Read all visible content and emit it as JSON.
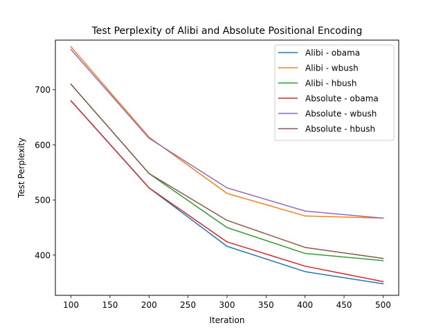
{
  "chart_data": {
    "type": "line",
    "title": "Test Perplexity of Alibi and Absolute Positional Encoding",
    "xlabel": "Iteration",
    "ylabel": "Test Perplexity",
    "xlim": [
      80,
      520
    ],
    "ylim": [
      327,
      790
    ],
    "xticks": [
      100,
      150,
      200,
      250,
      300,
      350,
      400,
      450,
      500
    ],
    "yticks": [
      400,
      500,
      600,
      700
    ],
    "grid": false,
    "legend_position": "top-right",
    "x": [
      100,
      200,
      300,
      400,
      500
    ],
    "series": [
      {
        "name": "Alibi - obama",
        "color": "#1f77b4",
        "values": [
          680,
          522,
          416,
          370,
          348
        ]
      },
      {
        "name": "Alibi - wbush",
        "color": "#ff7f0e",
        "values": [
          778,
          614,
          512,
          471,
          467
        ]
      },
      {
        "name": "Alibi - hbush",
        "color": "#2ca02c",
        "values": [
          710,
          548,
          450,
          403,
          390
        ]
      },
      {
        "name": "Absolute - obama",
        "color": "#d62728",
        "values": [
          680,
          522,
          424,
          380,
          352
        ]
      },
      {
        "name": "Absolute - wbush",
        "color": "#9467bd",
        "values": [
          773,
          612,
          522,
          480,
          467
        ]
      },
      {
        "name": "Absolute - hbush",
        "color": "#8c564b",
        "values": [
          710,
          548,
          463,
          414,
          394
        ]
      }
    ]
  }
}
